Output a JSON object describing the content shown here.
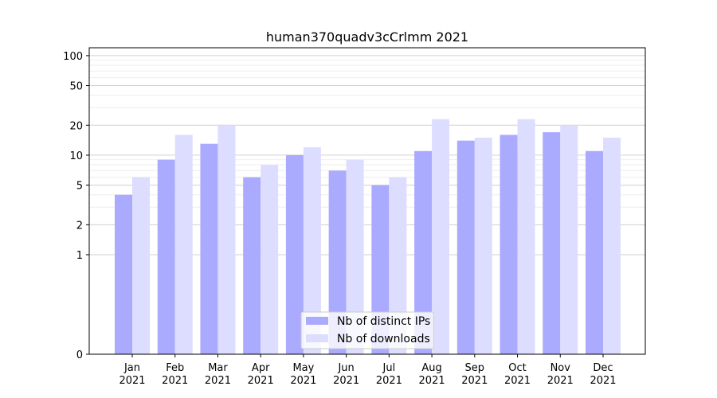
{
  "chart_data": {
    "type": "bar",
    "title": "human370quadv3cCrlmm 2021",
    "xlabel": "",
    "ylabel": "",
    "y_scale": "symlog",
    "ylim": [
      0,
      120
    ],
    "y_ticks": [
      0,
      1,
      2,
      5,
      10,
      20,
      50,
      100
    ],
    "y_tick_labels": [
      "0",
      "1",
      "2",
      "5",
      "10",
      "20",
      "50",
      "100"
    ],
    "grid": "horizontal",
    "legend_position": "bottom-center",
    "categories": [
      "Jan",
      "Feb",
      "Mar",
      "Apr",
      "May",
      "Jun",
      "Jul",
      "Aug",
      "Sep",
      "Oct",
      "Nov",
      "Dec"
    ],
    "category_year": "2021",
    "series": [
      {
        "name": "Nb of distinct IPs",
        "color": "#aaaaff",
        "values": [
          4,
          9,
          13,
          6,
          10,
          7,
          5,
          11,
          14,
          16,
          17,
          11
        ]
      },
      {
        "name": "Nb of downloads",
        "color": "#ddddff",
        "values": [
          6,
          16,
          20,
          8,
          12,
          9,
          6,
          23,
          15,
          23,
          20,
          15
        ]
      }
    ]
  }
}
